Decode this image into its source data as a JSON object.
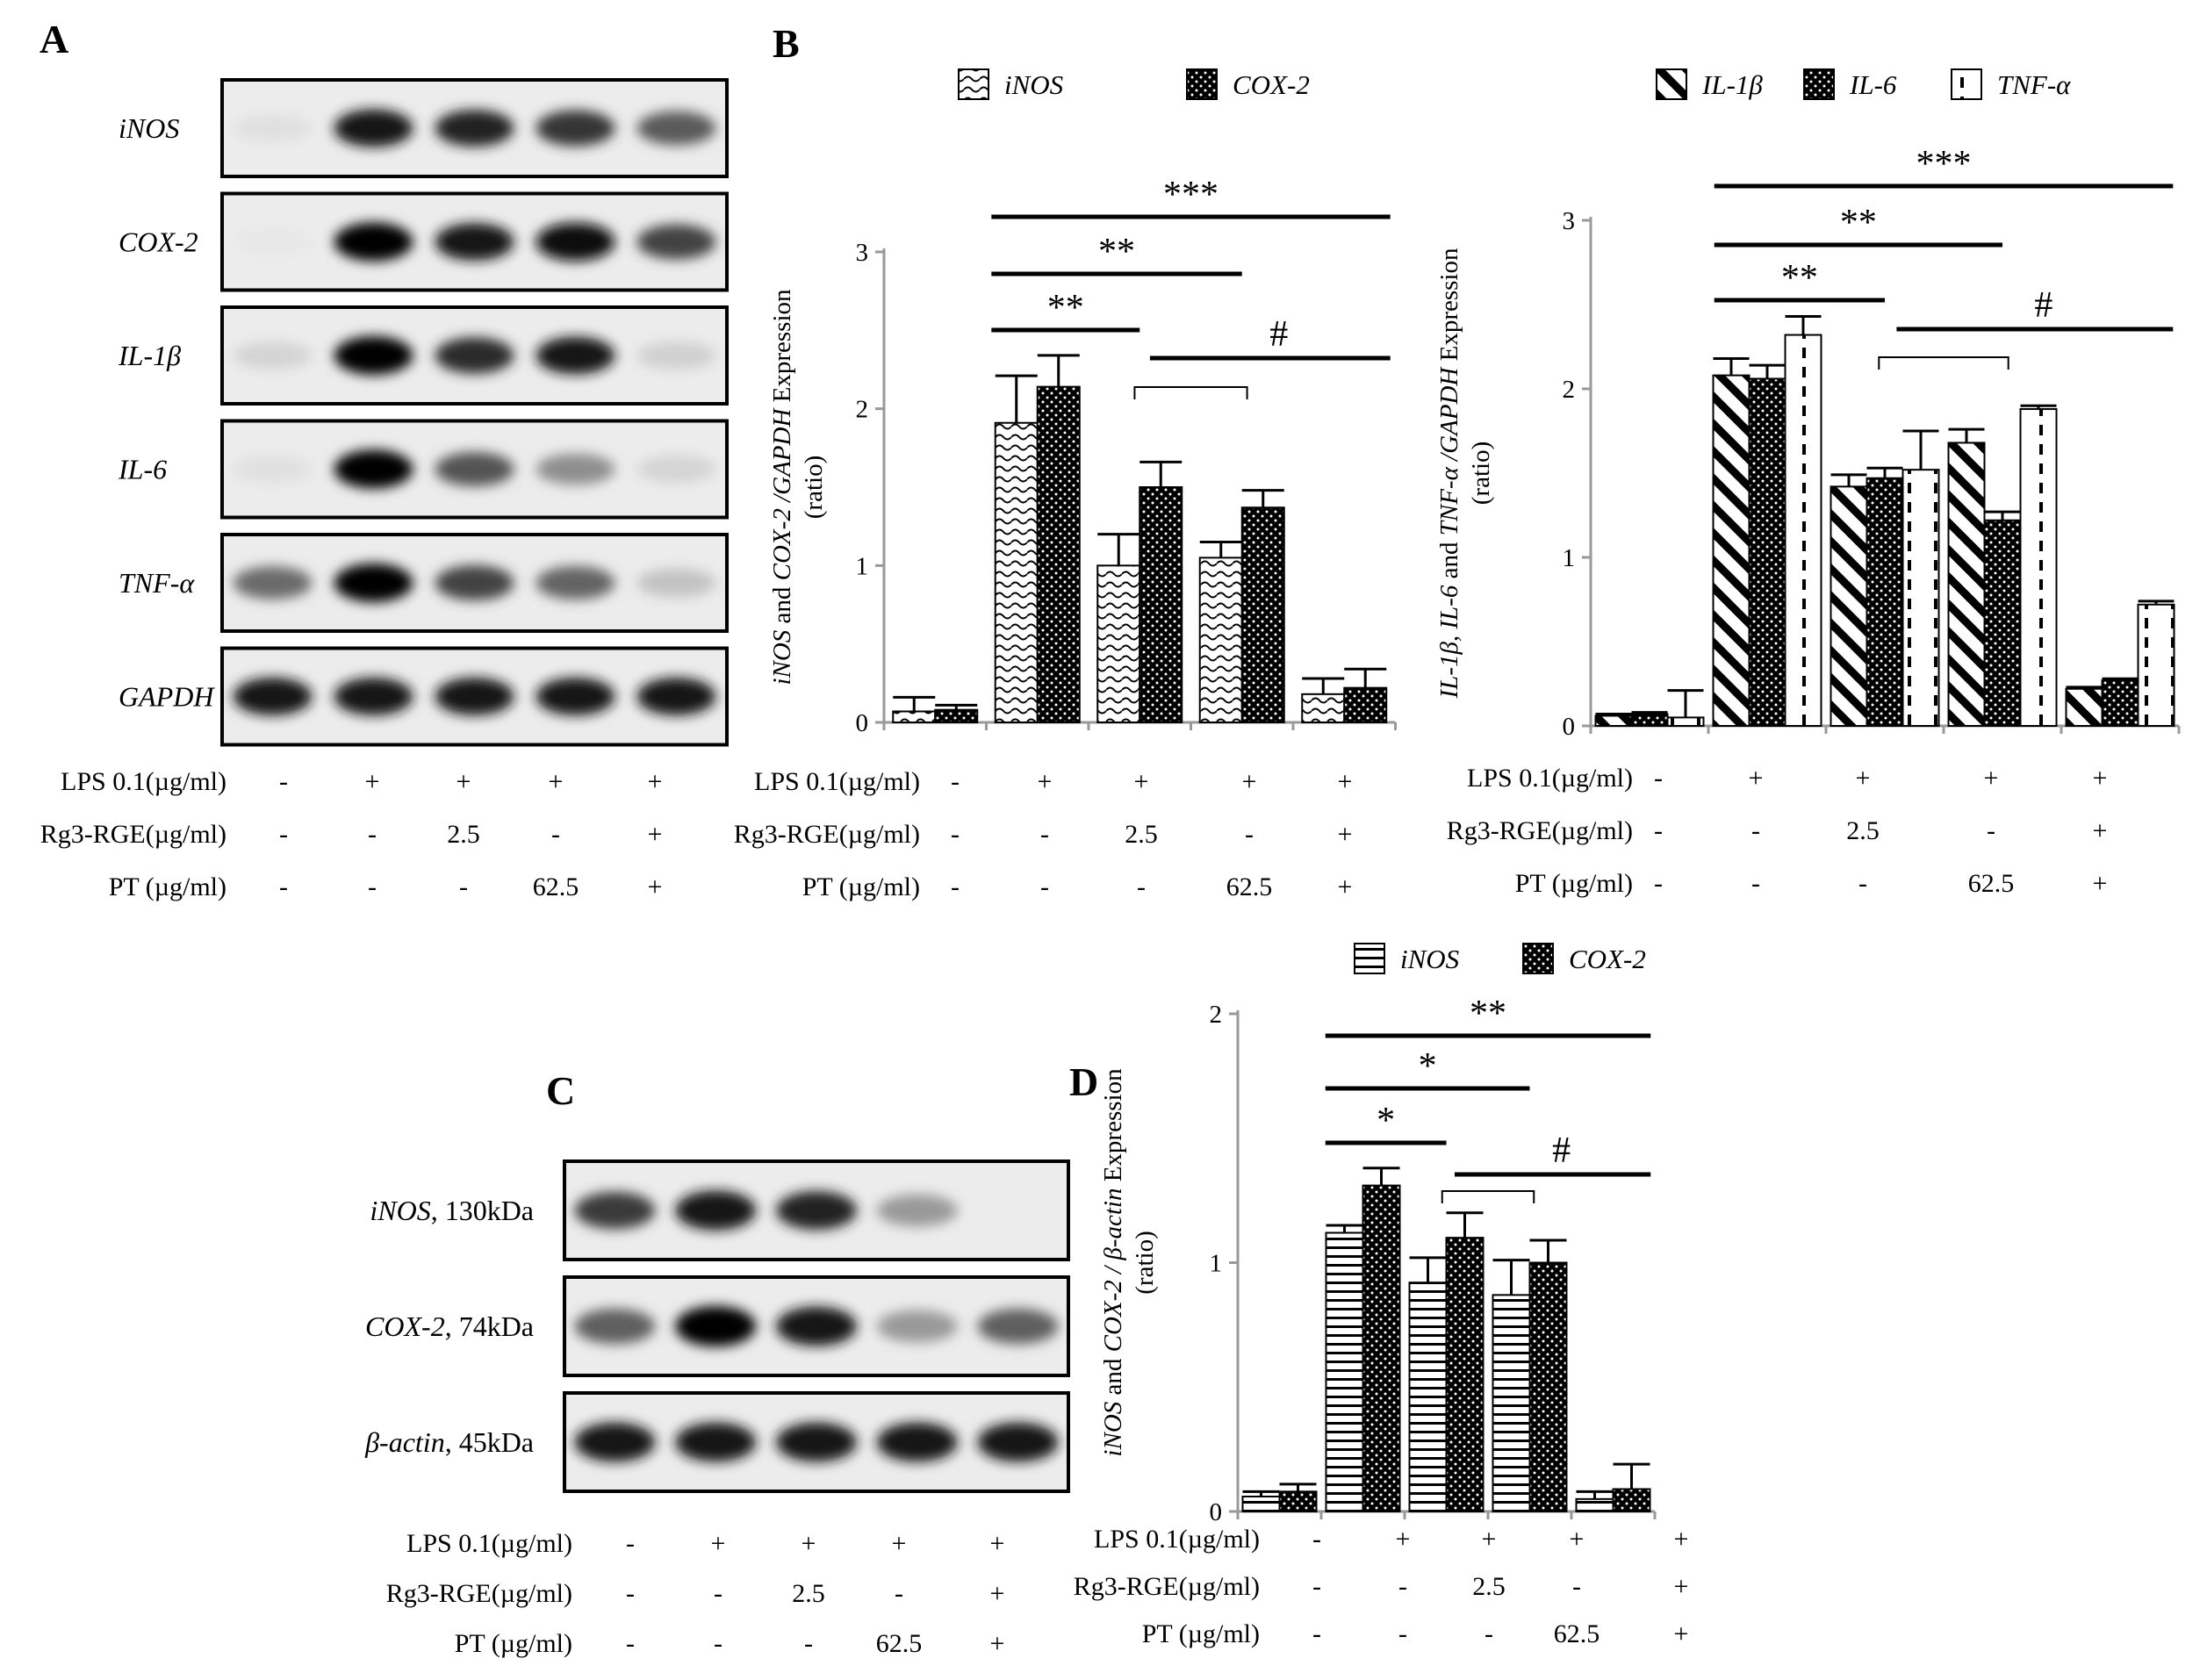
{
  "panel_labels": {
    "a": "A",
    "b": "B",
    "c": "C",
    "d": "D"
  },
  "treatment_labels": {
    "lps": "LPS 0.1(µg/ml)",
    "rg3": "Rg3-RGE(µg/ml)",
    "pt": "PT (µg/ml)",
    "lps_vals": [
      "-",
      "+",
      "+",
      "+",
      "+"
    ],
    "rg3_vals": [
      "-",
      "-",
      "2.5",
      "-",
      "+"
    ],
    "pt_vals": [
      "-",
      "-",
      "-",
      "62.5",
      "+"
    ]
  },
  "gel_a": {
    "rows": [
      {
        "label": "iNOS",
        "intensity": [
          0.05,
          0.92,
          0.85,
          0.78,
          0.62
        ]
      },
      {
        "label": "COX-2",
        "intensity": [
          0.02,
          1.0,
          0.9,
          0.97,
          0.72
        ]
      },
      {
        "label": "IL-1β",
        "intensity": [
          0.1,
          1.0,
          0.82,
          0.9,
          0.12
        ]
      },
      {
        "label": "IL-6",
        "intensity": [
          0.05,
          1.0,
          0.65,
          0.4,
          0.1
        ]
      },
      {
        "label": "TNF-α",
        "intensity": [
          0.55,
          1.0,
          0.72,
          0.58,
          0.18
        ]
      },
      {
        "label": "GAPDH",
        "intensity": [
          0.92,
          0.92,
          0.92,
          0.92,
          0.92
        ]
      }
    ]
  },
  "gel_c": {
    "rows": [
      {
        "label": "iNOS",
        "suffix": ", 130kDa",
        "intensity": [
          0.75,
          0.92,
          0.85,
          0.35,
          0.0
        ]
      },
      {
        "label": "COX-2",
        "suffix": ", 74kDa",
        "intensity": [
          0.6,
          1.0,
          0.9,
          0.35,
          0.6
        ]
      },
      {
        "label": "β-actin",
        "suffix": ", 45kDa",
        "intensity": [
          0.9,
          0.9,
          0.9,
          0.9,
          0.9
        ]
      }
    ]
  },
  "chart_data": [
    {
      "type": "bar",
      "panel": "B-left",
      "ylabel_italic1": "iNOS",
      "ylabel_plain1": " and ",
      "ylabel_italic2": "COX-2 /GAPDH",
      "ylabel_plain2": "  Expression",
      "ylabel_unit": "(ratio)",
      "ylim": [
        0,
        3
      ],
      "yticks": [
        "0",
        "1",
        "2",
        "3"
      ],
      "series": [
        {
          "name": "iNOS",
          "values": [
            0.07,
            1.91,
            1.0,
            1.05,
            0.18
          ],
          "errors": [
            0.09,
            0.3,
            0.2,
            0.1,
            0.1
          ],
          "pattern": "wave"
        },
        {
          "name": "COX-2",
          "values": [
            0.08,
            2.14,
            1.5,
            1.37,
            0.22
          ],
          "errors": [
            0.03,
            0.2,
            0.16,
            0.11,
            0.12
          ],
          "pattern": "dots"
        }
      ],
      "sig": [
        {
          "text": "***",
          "from": 1,
          "to": 4
        },
        {
          "text": "**",
          "from": 1,
          "to": 3
        },
        {
          "text": "**",
          "from": 1,
          "to": 2
        },
        {
          "text": "#",
          "from": 2,
          "to": 4
        }
      ]
    },
    {
      "type": "bar",
      "panel": "B-right",
      "ylabel_italic1": "IL-1β, IL-6",
      "ylabel_plain1": " and ",
      "ylabel_italic2": "TNF-α /GAPDH",
      "ylabel_plain2": "  Expression",
      "ylabel_unit": "(ratio)",
      "ylim": [
        0,
        3
      ],
      "yticks": [
        "0",
        "1",
        "2",
        "3"
      ],
      "series": [
        {
          "name": "IL-1β",
          "values": [
            0.06,
            2.08,
            1.42,
            1.68,
            0.22
          ],
          "errors": [
            0.01,
            0.1,
            0.07,
            0.08,
            0.01
          ],
          "pattern": "diag"
        },
        {
          "name": "IL-6",
          "values": [
            0.07,
            2.06,
            1.47,
            1.22,
            0.27
          ],
          "errors": [
            0.01,
            0.08,
            0.06,
            0.05,
            0.01
          ],
          "pattern": "dots"
        },
        {
          "name": "TNF-α",
          "values": [
            0.05,
            2.32,
            1.52,
            1.88,
            0.72
          ],
          "errors": [
            0.16,
            0.11,
            0.23,
            0.02,
            0.02
          ],
          "pattern": "vdash"
        }
      ],
      "sig": [
        {
          "text": "***",
          "from": 1,
          "to": 4
        },
        {
          "text": "**",
          "from": 1,
          "to": 3
        },
        {
          "text": "**",
          "from": 1,
          "to": 2
        },
        {
          "text": "#",
          "from": 2,
          "to": 4
        }
      ]
    },
    {
      "type": "bar",
      "panel": "D",
      "ylabel_italic1": "iNOS",
      "ylabel_plain1": " and ",
      "ylabel_italic2": "COX-2 / β-actin",
      "ylabel_plain2": "  Expression",
      "ylabel_unit": "(ratio)",
      "ylim": [
        0,
        2
      ],
      "yticks": [
        "0",
        "1",
        "2"
      ],
      "series": [
        {
          "name": "iNOS",
          "values": [
            0.06,
            1.12,
            0.92,
            0.87,
            0.05
          ],
          "errors": [
            0.02,
            0.03,
            0.1,
            0.14,
            0.03
          ],
          "pattern": "hlines"
        },
        {
          "name": "COX-2",
          "values": [
            0.08,
            1.31,
            1.1,
            1.0,
            0.09
          ],
          "errors": [
            0.03,
            0.07,
            0.1,
            0.09,
            0.1
          ],
          "pattern": "dots"
        }
      ],
      "sig": [
        {
          "text": "**",
          "from": 1,
          "to": 4
        },
        {
          "text": "*",
          "from": 1,
          "to": 3
        },
        {
          "text": "*",
          "from": 1,
          "to": 2
        },
        {
          "text": "#",
          "from": 2,
          "to": 4
        }
      ]
    }
  ]
}
